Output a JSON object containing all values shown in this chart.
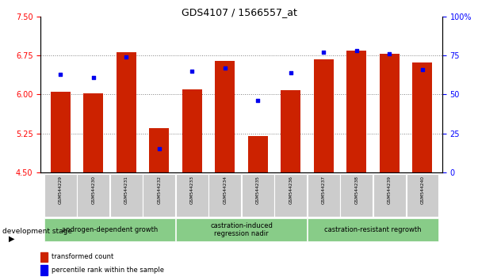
{
  "title": "GDS4107 / 1566557_at",
  "categories": [
    "GSM544229",
    "GSM544230",
    "GSM544231",
    "GSM544232",
    "GSM544233",
    "GSM544234",
    "GSM544235",
    "GSM544236",
    "GSM544237",
    "GSM544238",
    "GSM544239",
    "GSM544240"
  ],
  "bar_values": [
    6.05,
    6.02,
    6.82,
    5.35,
    6.1,
    6.65,
    5.2,
    6.08,
    6.68,
    6.85,
    6.78,
    6.62
  ],
  "scatter_values": [
    63,
    61,
    74,
    15,
    65,
    67,
    46,
    64,
    77,
    78,
    76,
    66
  ],
  "ylim_left": [
    4.5,
    7.5
  ],
  "ylim_right": [
    0,
    100
  ],
  "yticks_left": [
    4.5,
    5.25,
    6.0,
    6.75,
    7.5
  ],
  "yticks_right": [
    0,
    25,
    50,
    75,
    100
  ],
  "bar_color": "#cc2200",
  "scatter_color": "#0000ee",
  "bar_bottom": 4.5,
  "group_defs": [
    {
      "start": 0,
      "end": 3,
      "label": "androgen-dependent growth"
    },
    {
      "start": 4,
      "end": 7,
      "label": "castration-induced\nregression nadir"
    },
    {
      "start": 8,
      "end": 11,
      "label": "castration-resistant regrowth"
    }
  ],
  "group_color": "#88cc88",
  "xlabel_stage": "development stage",
  "legend_bar": "transformed count",
  "legend_scatter": "percentile rank within the sample",
  "title_fontsize": 9,
  "tick_fontsize": 7,
  "label_fontsize": 6,
  "group_fontsize": 6
}
